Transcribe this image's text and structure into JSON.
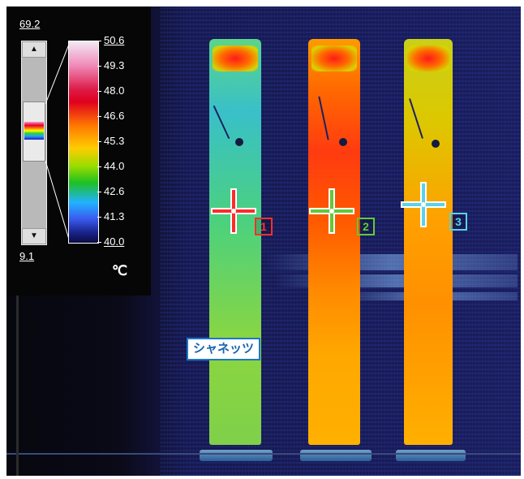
{
  "thermal_view": {
    "colors": {
      "background": "#1a1c5c",
      "panel": "#060606"
    },
    "scale": {
      "top_value": "69.2",
      "bottom_value": "9.1",
      "tick_labels": [
        "50.6",
        "49.3",
        "48.0",
        "46.6",
        "45.3",
        "44.0",
        "42.6",
        "41.3",
        "40.0"
      ],
      "unit": "℃"
    },
    "markers": [
      {
        "label": "1",
        "color": "#ff3030"
      },
      {
        "label": "2",
        "color": "#64c838"
      },
      {
        "label": "3",
        "color": "#5ad2e8"
      }
    ],
    "label_tag": "シャネッツ"
  }
}
